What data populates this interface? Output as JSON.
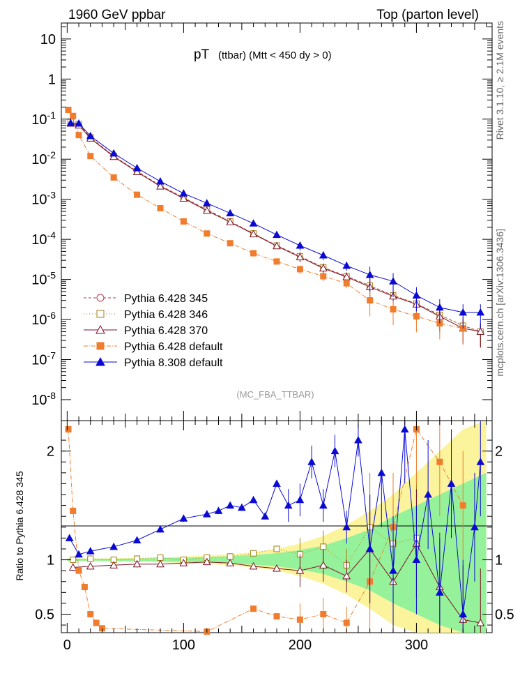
{
  "header": {
    "left": "1960 GeV ppbar",
    "right": "Top (parton level)"
  },
  "side_labels": {
    "upper": "Rivet 3.1.10, ≥ 2.1M events",
    "lower": "mcplots.cern.ch [arXiv:1306.3436]"
  },
  "chart_data": [
    {
      "type": "scatter",
      "panel": "main",
      "title_main": "pT",
      "title_sub": "(ttbar) (Mtt < 450 dy > 0)",
      "analysis_label": "(MC_FBA_TTBAR)",
      "xlim": [
        -5,
        365
      ],
      "ylim": [
        3e-09,
        25
      ],
      "yscale": "log",
      "ytick_values": [
        1e-08,
        1e-07,
        1e-06,
        1e-05,
        0.0001,
        0.001,
        0.01,
        0.1,
        1,
        10
      ],
      "ytick_labels": [
        {
          "base": "10",
          "exp": "-8"
        },
        {
          "base": "10",
          "exp": "-7"
        },
        {
          "base": "10",
          "exp": "-6"
        },
        {
          "base": "10",
          "exp": "-5"
        },
        {
          "base": "10",
          "exp": "-4"
        },
        {
          "base": "10",
          "exp": "-3"
        },
        {
          "base": "10",
          "exp": "-2"
        },
        {
          "base": "10",
          "exp": "-1"
        },
        {
          "base": "1",
          "exp": ""
        },
        {
          "base": "10",
          "exp": ""
        }
      ],
      "legend_position": "lower-left",
      "series": [
        {
          "name": "Pythia 6.428 345",
          "color": "#b5334f",
          "marker": "open-circle",
          "dash": "4,3",
          "x": [
            3,
            10,
            20,
            40,
            60,
            80,
            100,
            120,
            140,
            160,
            180,
            200,
            220,
            240,
            260,
            280,
            300,
            320,
            340,
            355
          ],
          "y": [
            0.085,
            0.075,
            0.035,
            0.012,
            0.005,
            0.0022,
            0.0011,
            0.00055,
            0.00028,
            0.00014,
            7e-05,
            3.8e-05,
            2e-05,
            1.2e-05,
            7e-06,
            4e-06,
            2.5e-06,
            1.3e-06,
            7e-07,
            5e-07
          ]
        },
        {
          "name": "Pythia 6.428 346",
          "color": "#a67d14",
          "marker": "open-square",
          "dash": "1,3",
          "x": [
            3,
            10,
            20,
            40,
            60,
            80,
            100,
            120,
            140,
            160,
            180,
            200,
            220,
            240,
            260,
            280,
            300,
            320,
            340,
            355
          ],
          "y": [
            0.085,
            0.075,
            0.035,
            0.012,
            0.005,
            0.0022,
            0.0011,
            0.00055,
            0.00028,
            0.00014,
            7e-05,
            3.8e-05,
            2e-05,
            1.2e-05,
            7e-06,
            4e-06,
            2.5e-06,
            1.3e-06,
            7e-07,
            5e-07
          ]
        },
        {
          "name": "Pythia 6.428 370",
          "color": "#7a1023",
          "marker": "open-triangle",
          "dash": "",
          "x": [
            3,
            10,
            20,
            40,
            60,
            80,
            100,
            120,
            140,
            160,
            180,
            200,
            220,
            240,
            260,
            280,
            300,
            320,
            340,
            355
          ],
          "y": [
            0.078,
            0.07,
            0.033,
            0.0115,
            0.0048,
            0.0021,
            0.00105,
            0.00052,
            0.00027,
            0.000135,
            6.8e-05,
            3.6e-05,
            1.9e-05,
            1.15e-05,
            6.5e-06,
            3.8e-06,
            2.4e-06,
            1.2e-06,
            6e-07,
            5e-07
          ]
        },
        {
          "name": "Pythia 6.428 default",
          "color": "#f07c2d",
          "marker": "filled-square",
          "dash": "6,2,1,2",
          "x": [
            1,
            5,
            10,
            20,
            40,
            60,
            80,
            100,
            120,
            140,
            160,
            180,
            200,
            220,
            240,
            260,
            280,
            300,
            320,
            340
          ],
          "y": [
            0.17,
            0.12,
            0.04,
            0.012,
            0.0035,
            0.0013,
            0.0006,
            0.00028,
            0.00014,
            8e-05,
            4.5e-05,
            2.8e-05,
            1.8e-05,
            1.2e-05,
            8e-06,
            3e-06,
            1.8e-06,
            1.2e-06,
            8e-07,
            6e-07
          ]
        },
        {
          "name": "Pythia 8.308 default",
          "color": "#0a0ad4",
          "marker": "filled-triangle",
          "dash": "",
          "x": [
            3,
            10,
            20,
            40,
            60,
            80,
            100,
            120,
            140,
            160,
            180,
            200,
            220,
            240,
            260,
            280,
            300,
            320,
            340,
            355
          ],
          "y": [
            0.08,
            0.078,
            0.038,
            0.014,
            0.006,
            0.0028,
            0.0014,
            0.0008,
            0.00045,
            0.00025,
            0.00013,
            7e-05,
            4e-05,
            2.2e-05,
            1.3e-05,
            9e-06,
            4e-06,
            2e-06,
            1.5e-06,
            1.5e-06
          ]
        }
      ]
    },
    {
      "type": "scatter",
      "panel": "ratio",
      "ylabel": "Ratio to Pythia 6.428 345",
      "xlim": [
        -5,
        365
      ],
      "ylim": [
        0.33,
        2.28
      ],
      "xtick_values": [
        0,
        100,
        200,
        300
      ],
      "xtick_labels": [
        "0",
        "100",
        "200",
        "300"
      ],
      "ytick_values": [
        0.5,
        1,
        2
      ],
      "ytick_labels": [
        "0.5",
        "1",
        "2"
      ],
      "band_yellow": {
        "x": [
          0,
          20,
          40,
          60,
          80,
          100,
          120,
          140,
          160,
          180,
          200,
          220,
          240,
          260,
          280,
          300,
          320,
          340,
          360
        ],
        "half": [
          0.015,
          0.012,
          0.015,
          0.018,
          0.022,
          0.03,
          0.04,
          0.05,
          0.07,
          0.1,
          0.15,
          0.22,
          0.32,
          0.45,
          0.6,
          0.8,
          1.0,
          1.2,
          1.4
        ]
      },
      "band_green": {
        "x": [
          0,
          20,
          40,
          60,
          80,
          100,
          120,
          140,
          160,
          180,
          200,
          220,
          240,
          260,
          280,
          300,
          320,
          340,
          360
        ],
        "half": [
          0.01,
          0.008,
          0.01,
          0.012,
          0.015,
          0.02,
          0.025,
          0.032,
          0.045,
          0.06,
          0.09,
          0.13,
          0.2,
          0.28,
          0.4,
          0.5,
          0.6,
          0.7,
          0.8
        ]
      },
      "series": [
        {
          "name": "Pythia 6.428 346",
          "color": "#a67d14",
          "marker": "open-square",
          "dash": "1,3",
          "x": [
            5,
            20,
            40,
            60,
            80,
            100,
            120,
            140,
            160,
            180,
            200,
            220,
            240,
            260,
            280,
            300
          ],
          "y": [
            1.0,
            1.01,
            1.0,
            1.01,
            1.02,
            1.0,
            1.02,
            1.03,
            1.06,
            1.1,
            1.05,
            1.12,
            0.95,
            1.3,
            1.15,
            1.2
          ]
        },
        {
          "name": "Pythia 6.428 370",
          "color": "#7a1023",
          "marker": "open-triangle",
          "dash": "",
          "x": [
            5,
            20,
            40,
            60,
            80,
            100,
            120,
            140,
            160,
            180,
            200,
            220,
            240,
            260,
            280,
            300,
            320,
            340,
            355
          ],
          "y": [
            0.93,
            0.94,
            0.95,
            0.96,
            0.96,
            0.97,
            0.98,
            0.97,
            0.94,
            0.92,
            0.9,
            0.95,
            0.85,
            1.1,
            0.8,
            1.15,
            0.75,
            0.45,
            0.42
          ]
        },
        {
          "name": "Pythia 6.428 default",
          "color": "#f07c2d",
          "marker": "filled-square",
          "dash": "6,2,1,2",
          "x": [
            1,
            5,
            10,
            15,
            20,
            25,
            30,
            120,
            160,
            180,
            200,
            220,
            240,
            260,
            280,
            300,
            320,
            340
          ],
          "y": [
            2.2,
            1.45,
            0.9,
            0.75,
            0.5,
            0.42,
            0.37,
            0.34,
            0.55,
            0.48,
            0.45,
            0.5,
            0.42,
            0.8,
            1.3,
            2.2,
            1.9,
            1.5
          ]
        },
        {
          "name": "Pythia 8.308 default",
          "color": "#0a0ad4",
          "marker": "filled-triangle",
          "dash": "",
          "x": [
            2,
            10,
            20,
            40,
            60,
            80,
            100,
            120,
            130,
            140,
            150,
            160,
            170,
            180,
            190,
            200,
            210,
            220,
            230,
            240,
            250,
            260,
            270,
            280,
            290,
            300,
            310,
            320,
            330,
            340,
            350,
            355
          ],
          "y": [
            1.2,
            1.05,
            1.08,
            1.12,
            1.18,
            1.28,
            1.38,
            1.42,
            1.45,
            1.5,
            1.48,
            1.55,
            1.4,
            1.7,
            1.5,
            1.55,
            1.9,
            1.5,
            2.0,
            1.3,
            2.1,
            1.1,
            1.8,
            0.9,
            2.2,
            1.0,
            1.6,
            0.7,
            1.7,
            0.5,
            1.3,
            1.9
          ]
        }
      ]
    }
  ]
}
